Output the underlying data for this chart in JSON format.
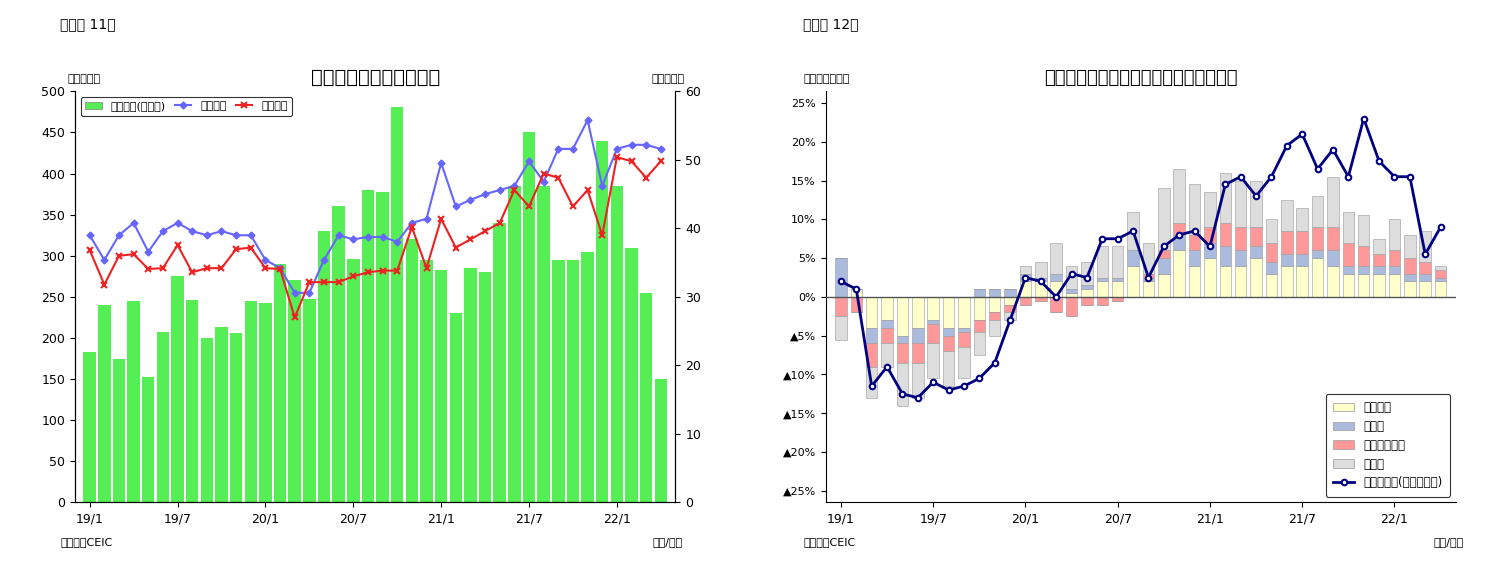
{
  "chart1": {
    "title": "シンガポール　貿易収支",
    "ylabel_left": "（億ドル）",
    "ylabel_right": "（億ドル）",
    "xlabel": "（年/月）",
    "source": "（資料）CEIC",
    "figure_label": "（図表 11）",
    "xtick_labels": [
      "19/1",
      "19/7",
      "20/1",
      "20/7",
      "21/1",
      "21/7",
      "22/1"
    ],
    "ylim_left": [
      0,
      500
    ],
    "ylim_right": [
      0,
      60
    ],
    "bar_color": "#55EE55",
    "line1_color": "#6666FF",
    "line2_color": "#EE2222",
    "legend_items": [
      "貿易収支(右目盛)",
      "総輸出額",
      "総輸入額"
    ],
    "bars": [
      183,
      240,
      175,
      245,
      152,
      207,
      275,
      246,
      200,
      213,
      206,
      245,
      243,
      290,
      270,
      247,
      330,
      360,
      296,
      380,
      378,
      481,
      320,
      295,
      283,
      230,
      285,
      280,
      340,
      385,
      450,
      385,
      295,
      295,
      305,
      440,
      385,
      310,
      255,
      150
    ],
    "line1_vals": [
      325,
      295,
      325,
      340,
      305,
      330,
      340,
      330,
      325,
      330,
      325,
      325,
      295,
      285,
      255,
      255,
      295,
      325,
      320,
      323,
      323,
      317,
      340,
      345,
      413,
      360,
      368,
      375,
      380,
      385,
      415,
      390,
      430,
      430,
      465,
      385,
      430,
      435,
      435,
      430
    ],
    "line2_vals": [
      307,
      265,
      300,
      302,
      284,
      285,
      313,
      280,
      285,
      285,
      308,
      310,
      285,
      284,
      225,
      268,
      268,
      268,
      275,
      280,
      282,
      282,
      335,
      285,
      345,
      310,
      320,
      330,
      340,
      380,
      360,
      400,
      395,
      360,
      380,
      325,
      420,
      415,
      395,
      415
    ]
  },
  "chart2": {
    "title": "シンガポール　輸出の伸び率（品目別）",
    "ylabel": "（前年同期比）",
    "xlabel": "（年/月）",
    "source": "（資料）CEIC",
    "figure_label": "（図表 12）",
    "xtick_labels": [
      "19/1",
      "19/7",
      "20/1",
      "20/7",
      "21/1",
      "21/7",
      "22/1"
    ],
    "ylim": [
      -0.265,
      0.265
    ],
    "colors": {
      "electronics": "#FFFFCC",
      "pharma": "#AABBDD",
      "petrochem": "#FF9999",
      "other": "#DDDDDD",
      "line": "#000080"
    },
    "legend_items": [
      "電子製品",
      "医薬品",
      "石油化学製品",
      "その他",
      "非石油輸出(再輸出除く)"
    ],
    "electronics": [
      0.0,
      0.01,
      -0.04,
      -0.03,
      -0.05,
      -0.04,
      -0.03,
      -0.04,
      -0.04,
      -0.03,
      -0.02,
      -0.01,
      0.02,
      0.02,
      0.02,
      0.005,
      0.01,
      0.02,
      0.02,
      0.04,
      0.02,
      0.03,
      0.06,
      0.04,
      0.05,
      0.04,
      0.04,
      0.05,
      0.03,
      0.04,
      0.04,
      0.05,
      0.04,
      0.03,
      0.03,
      0.03,
      0.03,
      0.02,
      0.02,
      0.02
    ],
    "pharma": [
      0.05,
      0.0,
      -0.02,
      -0.01,
      -0.01,
      -0.02,
      -0.005,
      -0.01,
      -0.005,
      0.01,
      0.01,
      0.01,
      0.01,
      0.005,
      0.01,
      0.005,
      0.005,
      0.005,
      0.005,
      0.02,
      0.005,
      0.02,
      0.02,
      0.02,
      0.02,
      0.025,
      0.02,
      0.015,
      0.015,
      0.015,
      0.015,
      0.01,
      0.02,
      0.01,
      0.01,
      0.01,
      0.01,
      0.01,
      0.01,
      0.005
    ],
    "petrochem": [
      -0.025,
      -0.02,
      -0.03,
      -0.02,
      -0.025,
      -0.025,
      -0.025,
      -0.02,
      -0.02,
      -0.015,
      -0.01,
      -0.01,
      -0.01,
      -0.005,
      -0.02,
      -0.025,
      -0.01,
      -0.01,
      -0.005,
      0.0,
      0.005,
      0.01,
      0.015,
      0.02,
      0.02,
      0.03,
      0.03,
      0.025,
      0.025,
      0.03,
      0.03,
      0.03,
      0.03,
      0.03,
      0.025,
      0.015,
      0.02,
      0.02,
      0.015,
      0.01
    ],
    "other": [
      -0.03,
      0.0,
      -0.04,
      -0.03,
      -0.055,
      -0.045,
      -0.045,
      -0.045,
      -0.04,
      -0.03,
      -0.02,
      -0.01,
      0.01,
      0.02,
      0.04,
      0.03,
      0.03,
      0.04,
      0.04,
      0.05,
      0.04,
      0.08,
      0.07,
      0.065,
      0.045,
      0.065,
      0.06,
      0.06,
      0.03,
      0.04,
      0.03,
      0.04,
      0.065,
      0.04,
      0.04,
      0.02,
      0.04,
      0.03,
      0.04,
      0.005
    ],
    "non_oil": [
      0.02,
      0.01,
      -0.115,
      -0.09,
      -0.125,
      -0.13,
      -0.11,
      -0.12,
      -0.115,
      -0.105,
      -0.085,
      -0.03,
      0.025,
      0.02,
      0.0,
      0.03,
      0.025,
      0.075,
      0.075,
      0.085,
      0.025,
      0.065,
      0.08,
      0.085,
      0.065,
      0.145,
      0.155,
      0.13,
      0.155,
      0.195,
      0.21,
      0.165,
      0.19,
      0.155,
      0.23,
      0.175,
      0.155,
      0.155,
      0.055,
      0.09
    ]
  }
}
